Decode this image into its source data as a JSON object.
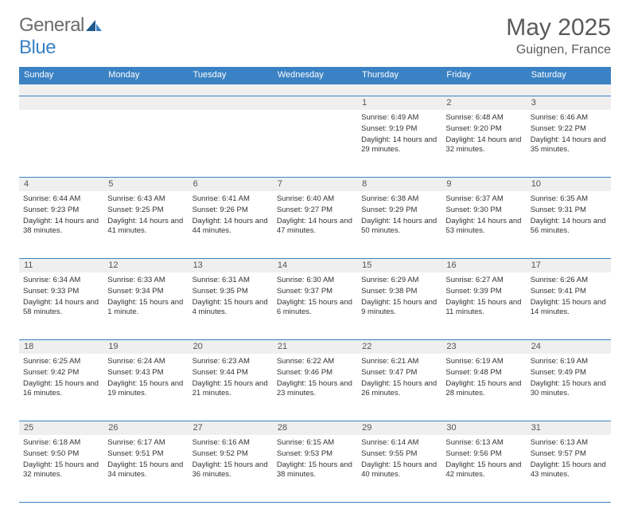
{
  "logo": {
    "text_general": "General",
    "text_blue": "Blue"
  },
  "header": {
    "month_title": "May 2025",
    "location": "Guignen, France"
  },
  "colors": {
    "brand_blue": "#3b82c4",
    "logo_gray": "#6b6b6b",
    "title_gray": "#5a5a5a",
    "daynum_bg": "#efefef",
    "text": "#333333",
    "white": "#ffffff"
  },
  "weekdays": [
    "Sunday",
    "Monday",
    "Tuesday",
    "Wednesday",
    "Thursday",
    "Friday",
    "Saturday"
  ],
  "weeks": [
    {
      "nums": [
        "",
        "",
        "",
        "",
        "1",
        "2",
        "3"
      ],
      "days": [
        null,
        null,
        null,
        null,
        {
          "sunrise": "6:49 AM",
          "sunset": "9:19 PM",
          "daylight": "14 hours and 29 minutes."
        },
        {
          "sunrise": "6:48 AM",
          "sunset": "9:20 PM",
          "daylight": "14 hours and 32 minutes."
        },
        {
          "sunrise": "6:46 AM",
          "sunset": "9:22 PM",
          "daylight": "14 hours and 35 minutes."
        }
      ]
    },
    {
      "nums": [
        "4",
        "5",
        "6",
        "7",
        "8",
        "9",
        "10"
      ],
      "days": [
        {
          "sunrise": "6:44 AM",
          "sunset": "9:23 PM",
          "daylight": "14 hours and 38 minutes."
        },
        {
          "sunrise": "6:43 AM",
          "sunset": "9:25 PM",
          "daylight": "14 hours and 41 minutes."
        },
        {
          "sunrise": "6:41 AM",
          "sunset": "9:26 PM",
          "daylight": "14 hours and 44 minutes."
        },
        {
          "sunrise": "6:40 AM",
          "sunset": "9:27 PM",
          "daylight": "14 hours and 47 minutes."
        },
        {
          "sunrise": "6:38 AM",
          "sunset": "9:29 PM",
          "daylight": "14 hours and 50 minutes."
        },
        {
          "sunrise": "6:37 AM",
          "sunset": "9:30 PM",
          "daylight": "14 hours and 53 minutes."
        },
        {
          "sunrise": "6:35 AM",
          "sunset": "9:31 PM",
          "daylight": "14 hours and 56 minutes."
        }
      ]
    },
    {
      "nums": [
        "11",
        "12",
        "13",
        "14",
        "15",
        "16",
        "17"
      ],
      "days": [
        {
          "sunrise": "6:34 AM",
          "sunset": "9:33 PM",
          "daylight": "14 hours and 58 minutes."
        },
        {
          "sunrise": "6:33 AM",
          "sunset": "9:34 PM",
          "daylight": "15 hours and 1 minute."
        },
        {
          "sunrise": "6:31 AM",
          "sunset": "9:35 PM",
          "daylight": "15 hours and 4 minutes."
        },
        {
          "sunrise": "6:30 AM",
          "sunset": "9:37 PM",
          "daylight": "15 hours and 6 minutes."
        },
        {
          "sunrise": "6:29 AM",
          "sunset": "9:38 PM",
          "daylight": "15 hours and 9 minutes."
        },
        {
          "sunrise": "6:27 AM",
          "sunset": "9:39 PM",
          "daylight": "15 hours and 11 minutes."
        },
        {
          "sunrise": "6:26 AM",
          "sunset": "9:41 PM",
          "daylight": "15 hours and 14 minutes."
        }
      ]
    },
    {
      "nums": [
        "18",
        "19",
        "20",
        "21",
        "22",
        "23",
        "24"
      ],
      "days": [
        {
          "sunrise": "6:25 AM",
          "sunset": "9:42 PM",
          "daylight": "15 hours and 16 minutes."
        },
        {
          "sunrise": "6:24 AM",
          "sunset": "9:43 PM",
          "daylight": "15 hours and 19 minutes."
        },
        {
          "sunrise": "6:23 AM",
          "sunset": "9:44 PM",
          "daylight": "15 hours and 21 minutes."
        },
        {
          "sunrise": "6:22 AM",
          "sunset": "9:46 PM",
          "daylight": "15 hours and 23 minutes."
        },
        {
          "sunrise": "6:21 AM",
          "sunset": "9:47 PM",
          "daylight": "15 hours and 26 minutes."
        },
        {
          "sunrise": "6:19 AM",
          "sunset": "9:48 PM",
          "daylight": "15 hours and 28 minutes."
        },
        {
          "sunrise": "6:19 AM",
          "sunset": "9:49 PM",
          "daylight": "15 hours and 30 minutes."
        }
      ]
    },
    {
      "nums": [
        "25",
        "26",
        "27",
        "28",
        "29",
        "30",
        "31"
      ],
      "days": [
        {
          "sunrise": "6:18 AM",
          "sunset": "9:50 PM",
          "daylight": "15 hours and 32 minutes."
        },
        {
          "sunrise": "6:17 AM",
          "sunset": "9:51 PM",
          "daylight": "15 hours and 34 minutes."
        },
        {
          "sunrise": "6:16 AM",
          "sunset": "9:52 PM",
          "daylight": "15 hours and 36 minutes."
        },
        {
          "sunrise": "6:15 AM",
          "sunset": "9:53 PM",
          "daylight": "15 hours and 38 minutes."
        },
        {
          "sunrise": "6:14 AM",
          "sunset": "9:55 PM",
          "daylight": "15 hours and 40 minutes."
        },
        {
          "sunrise": "6:13 AM",
          "sunset": "9:56 PM",
          "daylight": "15 hours and 42 minutes."
        },
        {
          "sunrise": "6:13 AM",
          "sunset": "9:57 PM",
          "daylight": "15 hours and 43 minutes."
        }
      ]
    }
  ],
  "labels": {
    "sunrise": "Sunrise:",
    "sunset": "Sunset:",
    "daylight": "Daylight:"
  }
}
